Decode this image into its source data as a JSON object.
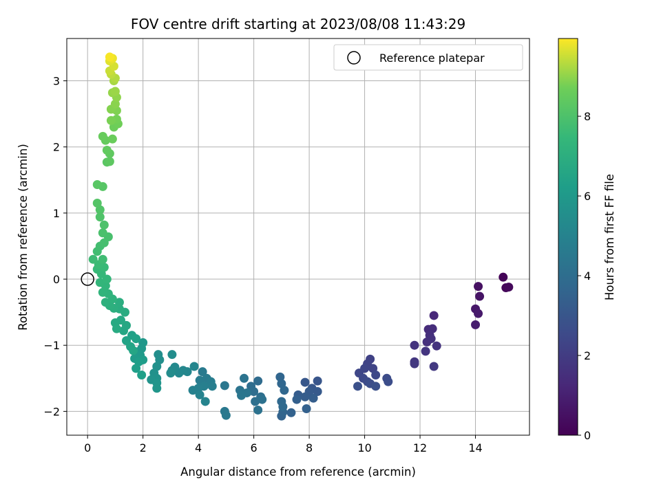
{
  "chart_data": {
    "type": "scatter",
    "title": "FOV centre drift starting at 2023/08/08 11:43:29",
    "xlabel": "Angular distance from reference (arcmin)",
    "ylabel": "Rotation from reference (arcmin)",
    "xlim": [
      -0.75,
      15.95
    ],
    "ylim": [
      -2.36,
      3.64
    ],
    "x_ticks": [
      0,
      2,
      4,
      6,
      8,
      10,
      12,
      14
    ],
    "y_ticks": [
      -2,
      -1,
      0,
      1,
      2,
      3
    ],
    "grid": true,
    "legend": {
      "placement": "top-right",
      "entries": [
        {
          "label": "Reference platepar",
          "marker": "open-circle"
        }
      ]
    },
    "reference_point": {
      "x": 0,
      "y": 0
    },
    "colorbar": {
      "label": "Hours from first FF file",
      "colormap": "viridis",
      "range": [
        0,
        9.95
      ],
      "ticks": [
        0,
        2,
        4,
        6,
        8
      ]
    },
    "points": [
      {
        "x": 15.0,
        "y": 0.03,
        "t": 0.1
      },
      {
        "x": 15.1,
        "y": -0.13,
        "t": 0.2
      },
      {
        "x": 15.2,
        "y": -0.12,
        "t": 0.25
      },
      {
        "x": 14.1,
        "y": -0.11,
        "t": 0.5
      },
      {
        "x": 14.15,
        "y": -0.26,
        "t": 0.6
      },
      {
        "x": 14.0,
        "y": -0.45,
        "t": 0.7
      },
      {
        "x": 14.1,
        "y": -0.52,
        "t": 0.8
      },
      {
        "x": 14.0,
        "y": -0.69,
        "t": 0.9
      },
      {
        "x": 12.5,
        "y": -0.55,
        "t": 1.3
      },
      {
        "x": 12.3,
        "y": -0.76,
        "t": 1.4
      },
      {
        "x": 12.45,
        "y": -0.75,
        "t": 1.45
      },
      {
        "x": 12.35,
        "y": -0.85,
        "t": 1.5
      },
      {
        "x": 12.25,
        "y": -0.95,
        "t": 1.55
      },
      {
        "x": 12.4,
        "y": -0.9,
        "t": 1.6
      },
      {
        "x": 12.6,
        "y": -1.01,
        "t": 1.65
      },
      {
        "x": 11.8,
        "y": -1.0,
        "t": 1.7
      },
      {
        "x": 12.2,
        "y": -1.09,
        "t": 1.75
      },
      {
        "x": 11.8,
        "y": -1.25,
        "t": 1.8
      },
      {
        "x": 11.8,
        "y": -1.28,
        "t": 1.85
      },
      {
        "x": 12.5,
        "y": -1.32,
        "t": 1.9
      },
      {
        "x": 10.2,
        "y": -1.21,
        "t": 2.2
      },
      {
        "x": 10.1,
        "y": -1.28,
        "t": 2.25
      },
      {
        "x": 10.3,
        "y": -1.35,
        "t": 2.3
      },
      {
        "x": 10.0,
        "y": -1.35,
        "t": 2.35
      },
      {
        "x": 9.8,
        "y": -1.42,
        "t": 2.4
      },
      {
        "x": 10.4,
        "y": -1.45,
        "t": 2.45
      },
      {
        "x": 9.95,
        "y": -1.5,
        "t": 2.5
      },
      {
        "x": 10.1,
        "y": -1.55,
        "t": 2.55
      },
      {
        "x": 10.8,
        "y": -1.5,
        "t": 2.6
      },
      {
        "x": 10.85,
        "y": -1.55,
        "t": 2.65
      },
      {
        "x": 10.2,
        "y": -1.58,
        "t": 2.7
      },
      {
        "x": 9.75,
        "y": -1.62,
        "t": 2.75
      },
      {
        "x": 10.4,
        "y": -1.62,
        "t": 2.8
      },
      {
        "x": 8.3,
        "y": -1.54,
        "t": 3.0
      },
      {
        "x": 7.85,
        "y": -1.56,
        "t": 3.05
      },
      {
        "x": 8.1,
        "y": -1.65,
        "t": 3.1
      },
      {
        "x": 8.3,
        "y": -1.7,
        "t": 3.15
      },
      {
        "x": 8.0,
        "y": -1.7,
        "t": 3.2
      },
      {
        "x": 7.6,
        "y": -1.75,
        "t": 3.25
      },
      {
        "x": 7.85,
        "y": -1.78,
        "t": 3.3
      },
      {
        "x": 8.15,
        "y": -1.8,
        "t": 3.35
      },
      {
        "x": 7.55,
        "y": -1.82,
        "t": 3.4
      },
      {
        "x": 7.9,
        "y": -1.96,
        "t": 3.45
      },
      {
        "x": 7.35,
        "y": -2.02,
        "t": 3.5
      },
      {
        "x": 7.0,
        "y": -2.07,
        "t": 3.55
      },
      {
        "x": 7.05,
        "y": -2.01,
        "t": 3.6
      },
      {
        "x": 6.95,
        "y": -1.48,
        "t": 3.65
      },
      {
        "x": 7.0,
        "y": -1.58,
        "t": 3.7
      },
      {
        "x": 7.1,
        "y": -1.68,
        "t": 3.75
      },
      {
        "x": 7.0,
        "y": -1.85,
        "t": 3.8
      },
      {
        "x": 7.05,
        "y": -1.93,
        "t": 3.85
      },
      {
        "x": 6.15,
        "y": -1.54,
        "t": 3.9
      },
      {
        "x": 5.9,
        "y": -1.62,
        "t": 3.95
      },
      {
        "x": 6.0,
        "y": -1.7,
        "t": 4.0
      },
      {
        "x": 6.25,
        "y": -1.78,
        "t": 4.05
      },
      {
        "x": 6.05,
        "y": -1.85,
        "t": 4.1
      },
      {
        "x": 6.3,
        "y": -1.82,
        "t": 4.15
      },
      {
        "x": 6.15,
        "y": -1.98,
        "t": 4.2
      },
      {
        "x": 5.65,
        "y": -1.5,
        "t": 4.25
      },
      {
        "x": 5.5,
        "y": -1.68,
        "t": 4.3
      },
      {
        "x": 5.75,
        "y": -1.72,
        "t": 4.35
      },
      {
        "x": 5.55,
        "y": -1.76,
        "t": 4.4
      },
      {
        "x": 4.95,
        "y": -1.61,
        "t": 4.45
      },
      {
        "x": 4.95,
        "y": -2.0,
        "t": 4.5
      },
      {
        "x": 5.0,
        "y": -2.06,
        "t": 4.55
      },
      {
        "x": 4.15,
        "y": -1.4,
        "t": 4.6
      },
      {
        "x": 4.3,
        "y": -1.5,
        "t": 4.65
      },
      {
        "x": 4.05,
        "y": -1.53,
        "t": 4.7
      },
      {
        "x": 4.45,
        "y": -1.55,
        "t": 4.75
      },
      {
        "x": 4.5,
        "y": -1.62,
        "t": 4.8
      },
      {
        "x": 4.2,
        "y": -1.62,
        "t": 4.85
      },
      {
        "x": 4.0,
        "y": -1.65,
        "t": 4.9
      },
      {
        "x": 3.8,
        "y": -1.68,
        "t": 4.95
      },
      {
        "x": 4.05,
        "y": -1.75,
        "t": 5.0
      },
      {
        "x": 4.25,
        "y": -1.85,
        "t": 5.05
      },
      {
        "x": 3.85,
        "y": -1.32,
        "t": 5.1
      },
      {
        "x": 3.6,
        "y": -1.4,
        "t": 5.15
      },
      {
        "x": 3.45,
        "y": -1.38,
        "t": 5.2
      },
      {
        "x": 3.3,
        "y": -1.42,
        "t": 5.25
      },
      {
        "x": 3.15,
        "y": -1.33,
        "t": 5.3
      },
      {
        "x": 3.05,
        "y": -1.38,
        "t": 5.35
      },
      {
        "x": 3.0,
        "y": -1.42,
        "t": 5.4
      },
      {
        "x": 3.05,
        "y": -1.14,
        "t": 5.45
      },
      {
        "x": 2.55,
        "y": -1.14,
        "t": 5.5
      },
      {
        "x": 2.6,
        "y": -1.22,
        "t": 5.55
      },
      {
        "x": 2.5,
        "y": -1.32,
        "t": 5.6
      },
      {
        "x": 2.4,
        "y": -1.42,
        "t": 5.65
      },
      {
        "x": 2.5,
        "y": -1.5,
        "t": 5.7
      },
      {
        "x": 2.3,
        "y": -1.52,
        "t": 5.75
      },
      {
        "x": 2.5,
        "y": -1.57,
        "t": 5.8
      },
      {
        "x": 2.5,
        "y": -1.65,
        "t": 5.85
      },
      {
        "x": 2.0,
        "y": -0.96,
        "t": 5.9
      },
      {
        "x": 1.95,
        "y": -1.05,
        "t": 5.95
      },
      {
        "x": 1.8,
        "y": -1.1,
        "t": 6.0
      },
      {
        "x": 1.9,
        "y": -1.15,
        "t": 6.05
      },
      {
        "x": 1.7,
        "y": -1.2,
        "t": 6.1
      },
      {
        "x": 2.0,
        "y": -1.22,
        "t": 6.15
      },
      {
        "x": 1.85,
        "y": -1.25,
        "t": 6.2
      },
      {
        "x": 1.75,
        "y": -1.35,
        "t": 6.25
      },
      {
        "x": 1.95,
        "y": -1.45,
        "t": 6.3
      },
      {
        "x": 1.6,
        "y": -0.85,
        "t": 6.35
      },
      {
        "x": 1.75,
        "y": -0.9,
        "t": 6.4
      },
      {
        "x": 1.4,
        "y": -0.93,
        "t": 6.45
      },
      {
        "x": 1.55,
        "y": -1.02,
        "t": 6.5
      },
      {
        "x": 1.65,
        "y": -1.08,
        "t": 6.55
      },
      {
        "x": 1.3,
        "y": -0.78,
        "t": 6.6
      },
      {
        "x": 1.4,
        "y": -0.7,
        "t": 6.65
      },
      {
        "x": 1.2,
        "y": -0.62,
        "t": 6.7
      },
      {
        "x": 1.0,
        "y": -0.66,
        "t": 6.75
      },
      {
        "x": 1.05,
        "y": -0.75,
        "t": 6.8
      },
      {
        "x": 1.35,
        "y": -0.5,
        "t": 6.85
      },
      {
        "x": 1.15,
        "y": -0.45,
        "t": 6.9
      },
      {
        "x": 1.15,
        "y": -0.35,
        "t": 6.95
      },
      {
        "x": 0.95,
        "y": -0.44,
        "t": 7.0
      },
      {
        "x": 0.8,
        "y": -0.4,
        "t": 7.05
      },
      {
        "x": 0.65,
        "y": -0.35,
        "t": 7.1
      },
      {
        "x": 0.9,
        "y": -0.3,
        "t": 7.15
      },
      {
        "x": 0.75,
        "y": -0.22,
        "t": 7.2
      },
      {
        "x": 0.55,
        "y": -0.2,
        "t": 7.25
      },
      {
        "x": 0.65,
        "y": -0.1,
        "t": 7.3
      },
      {
        "x": 0.45,
        "y": -0.05,
        "t": 7.35
      },
      {
        "x": 0.7,
        "y": 0.0,
        "t": 7.4
      },
      {
        "x": 0.5,
        "y": 0.08,
        "t": 7.45
      },
      {
        "x": 0.35,
        "y": 0.15,
        "t": 7.5
      },
      {
        "x": 0.6,
        "y": 0.18,
        "t": 7.55
      },
      {
        "x": 0.4,
        "y": 0.22,
        "t": 7.6
      },
      {
        "x": 0.2,
        "y": 0.3,
        "t": 7.65
      },
      {
        "x": 0.55,
        "y": 0.3,
        "t": 7.7
      },
      {
        "x": 0.35,
        "y": 0.42,
        "t": 7.75
      },
      {
        "x": 0.45,
        "y": 0.5,
        "t": 7.8
      },
      {
        "x": 0.6,
        "y": 0.55,
        "t": 7.85
      },
      {
        "x": 0.75,
        "y": 0.64,
        "t": 7.9
      },
      {
        "x": 0.55,
        "y": 0.7,
        "t": 7.95
      },
      {
        "x": 0.6,
        "y": 0.82,
        "t": 8.0
      },
      {
        "x": 0.45,
        "y": 0.94,
        "t": 8.05
      },
      {
        "x": 0.45,
        "y": 1.05,
        "t": 8.1
      },
      {
        "x": 0.35,
        "y": 1.15,
        "t": 8.15
      },
      {
        "x": 0.55,
        "y": 1.4,
        "t": 8.2
      },
      {
        "x": 0.35,
        "y": 1.43,
        "t": 8.25
      },
      {
        "x": 0.7,
        "y": 1.77,
        "t": 8.3
      },
      {
        "x": 0.8,
        "y": 1.78,
        "t": 8.35
      },
      {
        "x": 0.8,
        "y": 1.9,
        "t": 8.4
      },
      {
        "x": 0.7,
        "y": 1.95,
        "t": 8.45
      },
      {
        "x": 0.65,
        "y": 2.1,
        "t": 8.5
      },
      {
        "x": 0.55,
        "y": 2.16,
        "t": 8.55
      },
      {
        "x": 0.9,
        "y": 2.12,
        "t": 8.6
      },
      {
        "x": 0.95,
        "y": 2.3,
        "t": 8.65
      },
      {
        "x": 1.1,
        "y": 2.35,
        "t": 8.7
      },
      {
        "x": 1.05,
        "y": 2.42,
        "t": 8.75
      },
      {
        "x": 0.85,
        "y": 2.4,
        "t": 8.8
      },
      {
        "x": 1.05,
        "y": 2.55,
        "t": 8.85
      },
      {
        "x": 0.85,
        "y": 2.57,
        "t": 8.9
      },
      {
        "x": 1.0,
        "y": 2.65,
        "t": 8.95
      },
      {
        "x": 1.05,
        "y": 2.75,
        "t": 9.0
      },
      {
        "x": 0.9,
        "y": 2.82,
        "t": 9.05
      },
      {
        "x": 1.0,
        "y": 2.84,
        "t": 9.1
      },
      {
        "x": 0.95,
        "y": 3.0,
        "t": 9.2
      },
      {
        "x": 1.0,
        "y": 3.04,
        "t": 9.3
      },
      {
        "x": 0.85,
        "y": 3.1,
        "t": 9.4
      },
      {
        "x": 0.8,
        "y": 3.15,
        "t": 9.5
      },
      {
        "x": 0.95,
        "y": 3.22,
        "t": 9.6
      },
      {
        "x": 0.8,
        "y": 3.3,
        "t": 9.7
      },
      {
        "x": 0.9,
        "y": 3.34,
        "t": 9.8
      },
      {
        "x": 0.8,
        "y": 3.36,
        "t": 9.9
      }
    ]
  }
}
